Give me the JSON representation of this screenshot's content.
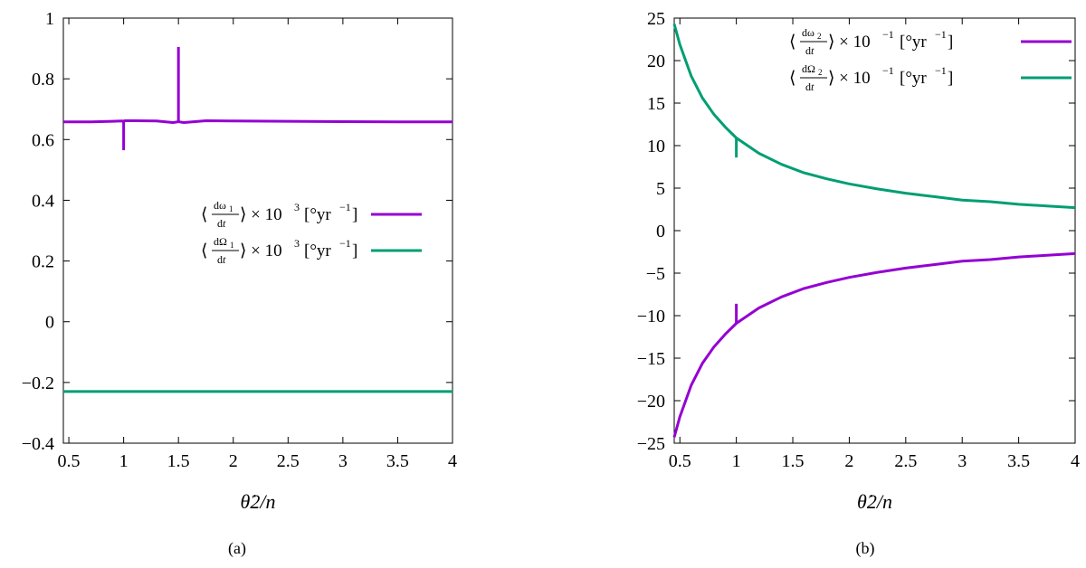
{
  "chart_data": [
    {
      "panel": "a",
      "type": "line",
      "caption": "(a)",
      "xlabel": "θ̇2/n",
      "ylabel": "",
      "xlim": [
        0.45,
        4.0
      ],
      "ylim": [
        -0.4,
        1.0
      ],
      "xticks": [
        "0.5",
        "1",
        "1.5",
        "2",
        "2.5",
        "3",
        "3.5",
        "4"
      ],
      "xtick_values": [
        0.5,
        1,
        1.5,
        2,
        2.5,
        3,
        3.5,
        4
      ],
      "yticks": [
        "−0.4",
        "−0.2",
        "0",
        "0.2",
        "0.4",
        "0.6",
        "0.8",
        "1"
      ],
      "ytick_values": [
        -0.4,
        -0.2,
        0,
        0.2,
        0.4,
        0.6,
        0.8,
        1.0
      ],
      "grid": false,
      "legend_position": "center-right",
      "series": [
        {
          "name": "⟨dω1/dt⟩ × 10^3 [°yr^−1]",
          "color": "#9400d3",
          "x": [
            0.45,
            0.7,
            0.9,
            0.99,
            1.0,
            1.01,
            1.1,
            1.3,
            1.45,
            1.49,
            1.5,
            1.51,
            1.55,
            1.65,
            1.75,
            2.0,
            2.5,
            3.0,
            3.5,
            4.0
          ],
          "y": [
            0.658,
            0.658,
            0.66,
            0.661,
            0.66,
            0.662,
            0.662,
            0.661,
            0.656,
            0.658,
            0.66,
            0.658,
            0.656,
            0.659,
            0.662,
            0.661,
            0.66,
            0.659,
            0.658,
            0.658
          ],
          "spikes": [
            {
              "x": 1.0,
              "y_from": 0.66,
              "y_to": 0.565
            },
            {
              "x": 1.5,
              "y_from": 0.66,
              "y_to": 0.905
            }
          ]
        },
        {
          "name": "⟨dΩ1/dt⟩ × 10^3 [°yr^−1]",
          "color": "#009e73",
          "x": [
            0.45,
            1.0,
            2.0,
            3.0,
            4.0
          ],
          "y": [
            -0.23,
            -0.23,
            -0.23,
            -0.23,
            -0.23
          ]
        }
      ]
    },
    {
      "panel": "b",
      "type": "line",
      "caption": "(b)",
      "xlabel": "θ̇2/n",
      "ylabel": "",
      "xlim": [
        0.45,
        4.0
      ],
      "ylim": [
        -25,
        25
      ],
      "xticks": [
        "0.5",
        "1",
        "1.5",
        "2",
        "2.5",
        "3",
        "3.5",
        "4"
      ],
      "xtick_values": [
        0.5,
        1,
        1.5,
        2,
        2.5,
        3,
        3.5,
        4
      ],
      "yticks": [
        "−25",
        "−20",
        "−15",
        "−10",
        "−5",
        "0",
        "5",
        "10",
        "15",
        "20",
        "25"
      ],
      "ytick_values": [
        -25,
        -20,
        -15,
        -10,
        -5,
        0,
        5,
        10,
        15,
        20,
        25
      ],
      "grid": false,
      "legend_position": "top-right",
      "series": [
        {
          "name": "⟨dω2/dt⟩ × 10^−1 [°yr^−1]",
          "color": "#9400d3",
          "x": [
            0.45,
            0.5,
            0.6,
            0.7,
            0.8,
            0.9,
            1.0,
            1.2,
            1.4,
            1.6,
            1.8,
            2.0,
            2.25,
            2.5,
            2.75,
            3.0,
            3.25,
            3.5,
            3.75,
            4.0
          ],
          "y": [
            -24.3,
            -21.9,
            -18.2,
            -15.6,
            -13.7,
            -12.2,
            -10.9,
            -9.1,
            -7.8,
            -6.8,
            -6.1,
            -5.5,
            -4.9,
            -4.4,
            -4.0,
            -3.6,
            -3.4,
            -3.1,
            -2.9,
            -2.7
          ],
          "spikes": [
            {
              "x": 1.0,
              "y_from": -10.9,
              "y_to": -8.6
            }
          ]
        },
        {
          "name": "⟨dΩ2/dt⟩ × 10^−1 [°yr^−1]",
          "color": "#009e73",
          "x": [
            0.45,
            0.5,
            0.6,
            0.7,
            0.8,
            0.9,
            1.0,
            1.2,
            1.4,
            1.6,
            1.8,
            2.0,
            2.25,
            2.5,
            2.75,
            3.0,
            3.25,
            3.5,
            3.75,
            4.0
          ],
          "y": [
            24.3,
            21.9,
            18.2,
            15.6,
            13.7,
            12.2,
            10.9,
            9.1,
            7.8,
            6.8,
            6.1,
            5.5,
            4.9,
            4.4,
            4.0,
            3.6,
            3.4,
            3.1,
            2.9,
            2.7
          ],
          "spikes": [
            {
              "x": 1.0,
              "y_from": 10.9,
              "y_to": 8.6
            }
          ]
        }
      ]
    }
  ]
}
